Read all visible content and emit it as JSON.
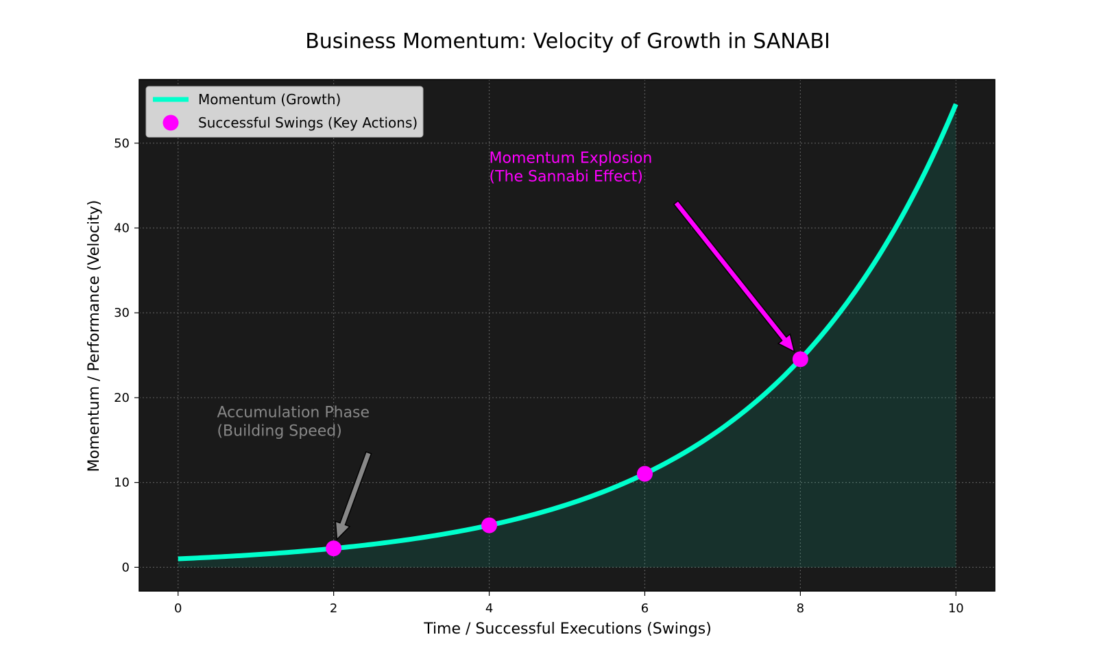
{
  "chart_data": {
    "type": "line",
    "title": "Business Momentum: Velocity of Growth in SANABI",
    "xlabel": "Time / Successful Executions (Swings)",
    "ylabel": "Momentum / Performance (Velocity)",
    "xlim": [
      -0.5,
      10.5
    ],
    "ylim": [
      -2.8,
      57.5
    ],
    "xticks": [
      0,
      2,
      4,
      6,
      8,
      10
    ],
    "yticks": [
      0,
      10,
      20,
      30,
      40,
      50
    ],
    "grid": true,
    "legend_position": "top-left",
    "background_color": "#1a1a1a",
    "series": [
      {
        "name": "Momentum (Growth)",
        "kind": "line",
        "color": "#00ffcc",
        "function": "exp(0.4*x)",
        "x_range": [
          0,
          10
        ],
        "fill_below": true
      },
      {
        "name": "Successful Swings (Key Actions)",
        "kind": "scatter",
        "color": "#ff00ff",
        "x": [
          2,
          4,
          6,
          8
        ],
        "y": [
          2.23,
          4.95,
          11.02,
          24.53
        ]
      }
    ],
    "annotations": [
      {
        "text": [
          "Accumulation Phase",
          "(Building Speed)"
        ],
        "color": "#888888",
        "text_anchor": [
          0.5,
          15.5
        ],
        "arrow_from": [
          2.45,
          13.5
        ],
        "arrow_to": [
          2.0,
          2.23
        ]
      },
      {
        "text": [
          "Momentum Explosion",
          "(The Sannabi Effect)"
        ],
        "color": "#ff00ff",
        "text_anchor": [
          4.0,
          45.5
        ],
        "arrow_from": [
          6.4,
          43.0
        ],
        "arrow_to": [
          8.0,
          24.53
        ]
      }
    ]
  }
}
